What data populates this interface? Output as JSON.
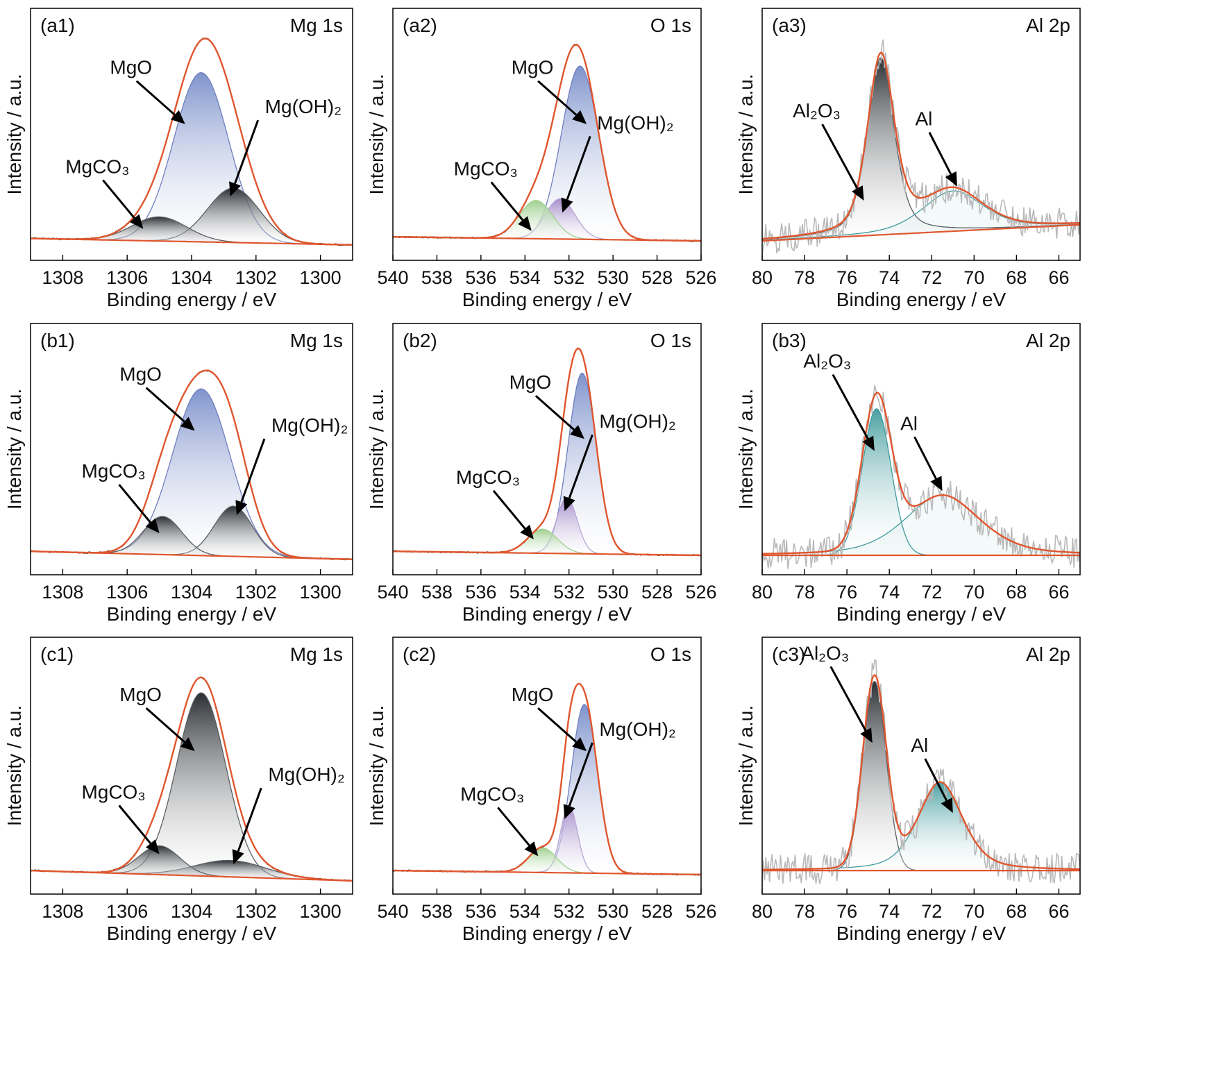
{
  "figure": {
    "axis_xlabel": "Binding energy / eV",
    "axis_ylabel": "Intensity / a.u."
  },
  "colors": {
    "envelope": "#e0562e",
    "background": "#e0562e",
    "raw_noisy": "#b9b9b9",
    "raw_dark": "#3a3a3a",
    "mgo_blue": "#7f93cc",
    "dark_gray": "#2b2f33",
    "purple": "#a58cc9",
    "green": "#9fd08f",
    "teal": "#3f9a9c",
    "arrow": "#000000"
  },
  "chart_data": [
    {
      "id": "a1",
      "type": "area",
      "panel_label": "(a1)",
      "region": "Mg 1s",
      "xlabel": "Binding energy / eV",
      "ylabel": "Intensity / a.u.",
      "xlim": [
        1309,
        1299
      ],
      "ylim": [
        0,
        1.12
      ],
      "xticks": [
        1308,
        1306,
        1304,
        1302,
        1300
      ],
      "style": "mg1s_a",
      "raw": "smooth",
      "bg_start": 0.012,
      "bg_end": -0.02,
      "series": [
        {
          "name": "MgO",
          "center": 1303.7,
          "height": 0.84,
          "fwhm": 2.0,
          "fill": "blue"
        },
        {
          "name": "Mg(OH)2",
          "center": 1302.7,
          "height": 0.27,
          "fwhm": 1.9,
          "fill": "dark"
        },
        {
          "name": "MgCO3",
          "center": 1305.0,
          "height": 0.12,
          "fwhm": 2.0,
          "fill": "dark"
        }
      ],
      "annotations": [
        {
          "label": "MgO",
          "arrow_to": [
            1304.2,
            0.58
          ]
        },
        {
          "label": "Mg(OH)2",
          "arrow_to": [
            1302.8,
            0.22
          ]
        },
        {
          "label": "MgCO3",
          "arrow_to": [
            1305.5,
            0.06
          ]
        }
      ]
    },
    {
      "id": "a2",
      "type": "area",
      "panel_label": "(a2)",
      "region": "O 1s",
      "xlabel": "Binding energy / eV",
      "ylabel": "Intensity / a.u.",
      "xlim": [
        540,
        526
      ],
      "ylim": [
        0,
        1.12
      ],
      "xticks": [
        540,
        538,
        536,
        534,
        532,
        530,
        528,
        526
      ],
      "style": "o1s",
      "raw": "dark",
      "bg_start": 0.02,
      "bg_end": 0.0,
      "series": [
        {
          "name": "MgO",
          "center": 531.5,
          "height": 0.86,
          "fwhm": 2.0,
          "fill": "blue"
        },
        {
          "name": "Mg(OH)2",
          "center": 532.4,
          "height": 0.2,
          "fwhm": 1.6,
          "fill": "purple"
        },
        {
          "name": "MgCO3",
          "center": 533.5,
          "height": 0.19,
          "fwhm": 1.8,
          "fill": "green"
        }
      ],
      "annotations": [
        {
          "label": "MgO",
          "arrow_to": [
            531.2,
            0.58
          ]
        },
        {
          "label": "Mg(OH)2",
          "arrow_to": [
            532.3,
            0.14
          ]
        },
        {
          "label": "MgCO3",
          "arrow_to": [
            533.7,
            0.05
          ]
        }
      ]
    },
    {
      "id": "a3",
      "type": "area",
      "panel_label": "(a3)",
      "region": "Al 2p",
      "xlabel": "Binding energy / eV",
      "ylabel": "Intensity / a.u.",
      "xlim": [
        80,
        65
      ],
      "ylim": [
        0,
        1.12
      ],
      "xticks": [
        80,
        78,
        76,
        74,
        72,
        70,
        68,
        66
      ],
      "style": "al2p_a",
      "raw": "noisy",
      "bg_start": 0.0,
      "bg_end": 0.08,
      "series": [
        {
          "name": "Al2O3",
          "center": 74.4,
          "height": 0.88,
          "fwhm": 1.5,
          "fill": "dark",
          "tail": true
        },
        {
          "name": "Al",
          "center": 71.0,
          "height": 0.2,
          "fwhm": 3.4,
          "fill": "none",
          "tail": true
        }
      ],
      "annotations": [
        {
          "label": "Al2O3",
          "arrow_to": [
            75.2,
            0.2
          ]
        },
        {
          "label": "Al",
          "arrow_to": [
            70.8,
            0.27
          ]
        }
      ]
    },
    {
      "id": "b1",
      "type": "area",
      "panel_label": "(b1)",
      "region": "Mg 1s",
      "xlabel": "Binding energy / eV",
      "ylabel": "Intensity / a.u.",
      "xlim": [
        1309,
        1299
      ],
      "ylim": [
        0,
        1.12
      ],
      "xticks": [
        1308,
        1306,
        1304,
        1302,
        1300
      ],
      "style": "mg1s_b",
      "raw": "dark",
      "bg_start": 0.02,
      "bg_end": -0.02,
      "series": [
        {
          "name": "MgO",
          "center": 1303.7,
          "height": 0.83,
          "fwhm": 2.1,
          "fill": "blue"
        },
        {
          "name": "Mg(OH)2",
          "center": 1302.7,
          "height": 0.25,
          "fwhm": 1.4,
          "fill": "dark"
        },
        {
          "name": "MgCO3",
          "center": 1304.9,
          "height": 0.19,
          "fwhm": 1.4,
          "fill": "dark"
        }
      ],
      "annotations": [
        {
          "label": "MgO",
          "arrow_to": [
            1303.9,
            0.62
          ]
        },
        {
          "label": "Mg(OH)2",
          "arrow_to": [
            1302.6,
            0.2
          ]
        },
        {
          "label": "MgCO3",
          "arrow_to": [
            1305.0,
            0.11
          ]
        }
      ]
    },
    {
      "id": "b2",
      "type": "area",
      "panel_label": "(b2)",
      "region": "O 1s",
      "xlabel": "Binding energy / eV",
      "ylabel": "Intensity / a.u.",
      "xlim": [
        540,
        526
      ],
      "ylim": [
        0,
        1.12
      ],
      "xticks": [
        540,
        538,
        536,
        534,
        532,
        530,
        528,
        526
      ],
      "style": "o1s",
      "raw": "dark",
      "bg_start": 0.02,
      "bg_end": 0.0,
      "series": [
        {
          "name": "MgO",
          "center": 531.4,
          "height": 0.9,
          "fwhm": 1.5,
          "fill": "blue"
        },
        {
          "name": "Mg(OH)2",
          "center": 532.1,
          "height": 0.28,
          "fwhm": 1.1,
          "fill": "purple"
        },
        {
          "name": "MgCO3",
          "center": 533.2,
          "height": 0.12,
          "fwhm": 1.6,
          "fill": "green"
        }
      ],
      "annotations": [
        {
          "label": "MgO",
          "arrow_to": [
            531.3,
            0.58
          ]
        },
        {
          "label": "Mg(OH)2",
          "arrow_to": [
            532.2,
            0.22
          ]
        },
        {
          "label": "MgCO3",
          "arrow_to": [
            533.6,
            0.08
          ]
        }
      ]
    },
    {
      "id": "b3",
      "type": "area",
      "panel_label": "(b3)",
      "region": "Al 2p",
      "xlabel": "Binding energy / eV",
      "ylabel": "Intensity / a.u.",
      "xlim": [
        80,
        65
      ],
      "ylim": [
        0,
        1.12
      ],
      "xticks": [
        80,
        78,
        76,
        74,
        72,
        70,
        68,
        66
      ],
      "style": "al2p_b",
      "raw": "noisy",
      "bg_start": 0.0,
      "bg_end": 0.0,
      "series": [
        {
          "name": "Al2O3",
          "center": 74.6,
          "height": 0.73,
          "fwhm": 1.6,
          "fill": "teal"
        },
        {
          "name": "Al",
          "center": 71.5,
          "height": 0.3,
          "fwhm": 4.2,
          "fill": "none",
          "tail": true
        }
      ],
      "annotations": [
        {
          "label": "Al2O3",
          "arrow_to": [
            74.7,
            0.52
          ]
        },
        {
          "label": "Al",
          "arrow_to": [
            71.5,
            0.32
          ]
        }
      ]
    },
    {
      "id": "c1",
      "type": "area",
      "panel_label": "(c1)",
      "region": "Mg 1s",
      "xlabel": "Binding energy / eV",
      "ylabel": "Intensity / a.u.",
      "xlim": [
        1309,
        1299
      ],
      "ylim": [
        0,
        1.12
      ],
      "xticks": [
        1308,
        1306,
        1304,
        1302,
        1300
      ],
      "style": "mg1s_c",
      "raw": "dark",
      "bg_start": 0.02,
      "bg_end": -0.03,
      "series": [
        {
          "name": "MgO",
          "center": 1303.7,
          "height": 0.89,
          "fwhm": 1.8,
          "fill": "dark"
        },
        {
          "name": "Mg(OH)2",
          "center": 1302.8,
          "height": 0.08,
          "fwhm": 2.6,
          "fill": "dark"
        },
        {
          "name": "MgCO3",
          "center": 1305.0,
          "height": 0.14,
          "fwhm": 1.5,
          "fill": "dark"
        }
      ],
      "annotations": [
        {
          "label": "MgO",
          "arrow_to": [
            1303.9,
            0.6
          ]
        },
        {
          "label": "Mg(OH)2",
          "arrow_to": [
            1302.7,
            0.05
          ]
        },
        {
          "label": "MgCO3",
          "arrow_to": [
            1305.0,
            0.1
          ]
        }
      ]
    },
    {
      "id": "c2",
      "type": "area",
      "panel_label": "(c2)",
      "region": "O 1s",
      "xlabel": "Binding energy / eV",
      "ylabel": "Intensity / a.u.",
      "xlim": [
        540,
        526
      ],
      "ylim": [
        0,
        1.12
      ],
      "xticks": [
        540,
        538,
        536,
        534,
        532,
        530,
        528,
        526
      ],
      "style": "o1s",
      "raw": "dark",
      "bg_start": 0.02,
      "bg_end": 0.0,
      "series": [
        {
          "name": "MgO",
          "center": 531.3,
          "height": 0.82,
          "fwhm": 1.4,
          "fill": "blue"
        },
        {
          "name": "Mg(OH)2",
          "center": 532.0,
          "height": 0.33,
          "fwhm": 0.9,
          "fill": "purple"
        },
        {
          "name": "MgCO3",
          "center": 533.2,
          "height": 0.12,
          "fwhm": 1.5,
          "fill": "green"
        }
      ],
      "annotations": [
        {
          "label": "MgO",
          "arrow_to": [
            531.2,
            0.6
          ]
        },
        {
          "label": "Mg(OH)2",
          "arrow_to": [
            532.2,
            0.27
          ]
        },
        {
          "label": "MgCO3",
          "arrow_to": [
            533.4,
            0.09
          ]
        }
      ]
    },
    {
      "id": "c3",
      "type": "area",
      "panel_label": "(c3)",
      "region": "Al 2p",
      "xlabel": "Binding energy / eV",
      "ylabel": "Intensity / a.u.",
      "xlim": [
        80,
        65
      ],
      "ylim": [
        0,
        1.12
      ],
      "xticks": [
        80,
        78,
        76,
        74,
        72,
        70,
        68,
        66
      ],
      "style": "al2p_c",
      "raw": "noisy",
      "bg_start": 0.02,
      "bg_end": 0.02,
      "series": [
        {
          "name": "Al2O3",
          "center": 74.7,
          "height": 0.92,
          "fwhm": 1.3,
          "fill": "dark"
        },
        {
          "name": "Al",
          "center": 71.6,
          "height": 0.43,
          "fwhm": 2.5,
          "fill": "teal",
          "tail": true
        }
      ],
      "annotations": [
        {
          "label": "Al2O3",
          "arrow_to": [
            74.8,
            0.64
          ]
        },
        {
          "label": "Al",
          "arrow_to": [
            71.0,
            0.3
          ]
        }
      ]
    }
  ]
}
